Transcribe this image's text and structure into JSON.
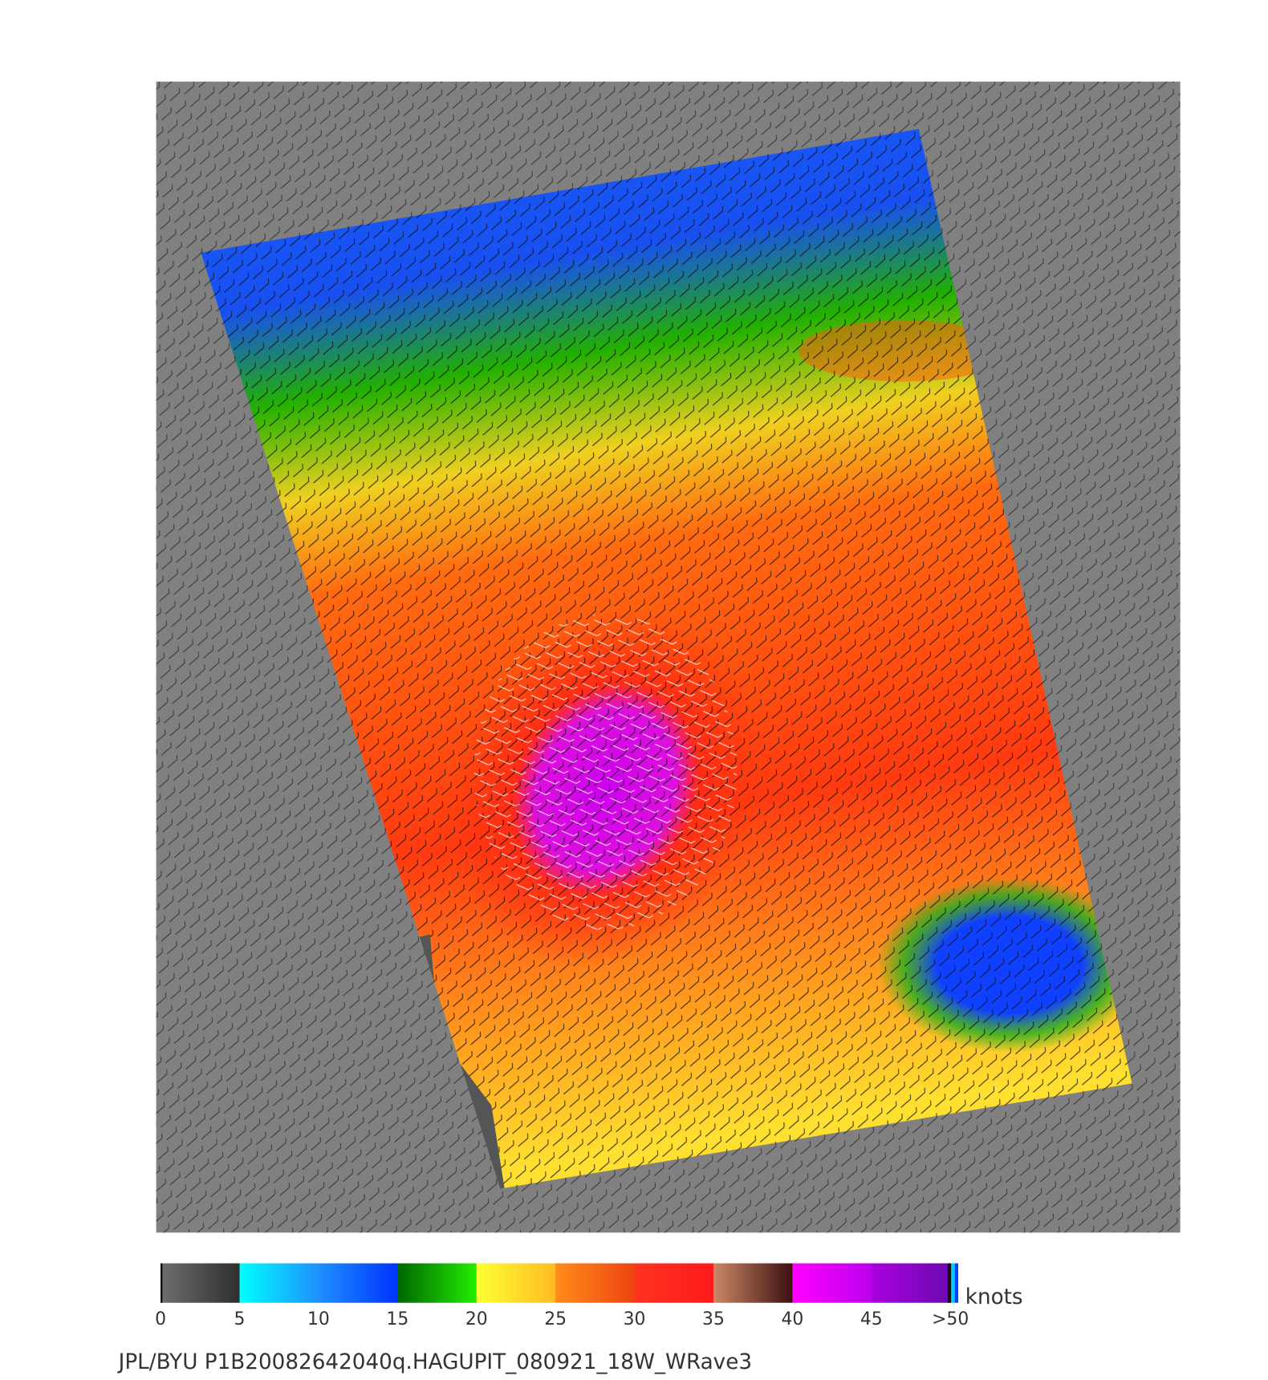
{
  "colorbar": {
    "ticks": [
      "0",
      "5",
      "10",
      "15",
      "20",
      "25",
      "30",
      "35",
      "40",
      "45",
      ">50"
    ],
    "unit": "knots",
    "colors": [
      [
        "#6e6e6e",
        "#2e2e2e"
      ],
      [
        "#00ffff",
        "#1e90ff"
      ],
      [
        "#1e90ff",
        "#0033ff"
      ],
      [
        "#006600",
        "#22ee00"
      ],
      [
        "#ffff33",
        "#ffbb22"
      ],
      [
        "#ff8c1a",
        "#ee4411"
      ],
      [
        "#ff3320",
        "#ff1a1a"
      ],
      [
        "#cc8866",
        "#3a1010"
      ],
      [
        "#ff00ff",
        "#bb00ee"
      ],
      [
        "#aa00dd",
        "#6a0ab0"
      ]
    ]
  },
  "footer": "JPL/BYU  P1B20082642040q.HAGUPIT_080921_18W_WRave3"
}
